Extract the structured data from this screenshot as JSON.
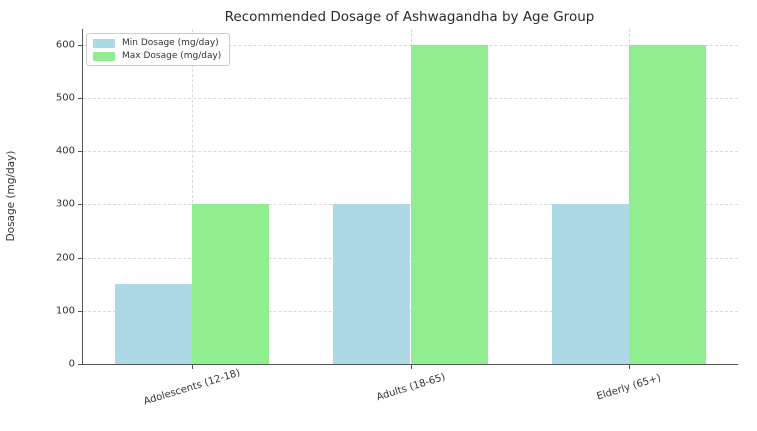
{
  "chart_data": {
    "type": "bar",
    "title": "Recommended Dosage of Ashwagandha by Age Group",
    "xlabel": "",
    "ylabel": "Dosage (mg/day)",
    "categories": [
      "Adolescents (12-18)",
      "Adults (18-65)",
      "Elderly (65+)"
    ],
    "series": [
      {
        "name": "Min Dosage (mg/day)",
        "values": [
          150,
          300,
          300
        ],
        "color": "#ADD8E6"
      },
      {
        "name": "Max Dosage (mg/day)",
        "values": [
          300,
          600,
          600
        ],
        "color": "#90EE90"
      }
    ],
    "yticks": [
      0,
      100,
      200,
      300,
      400,
      500,
      600
    ],
    "ylim": [
      0,
      630
    ],
    "grid": true,
    "grid_style": "dashed",
    "legend_position": "upper left",
    "bar_width_frac": 0.1176
  },
  "colors": {
    "grid": "#d9d9d9",
    "spine": "#555555",
    "text": "#333333",
    "background": "#ffffff"
  }
}
